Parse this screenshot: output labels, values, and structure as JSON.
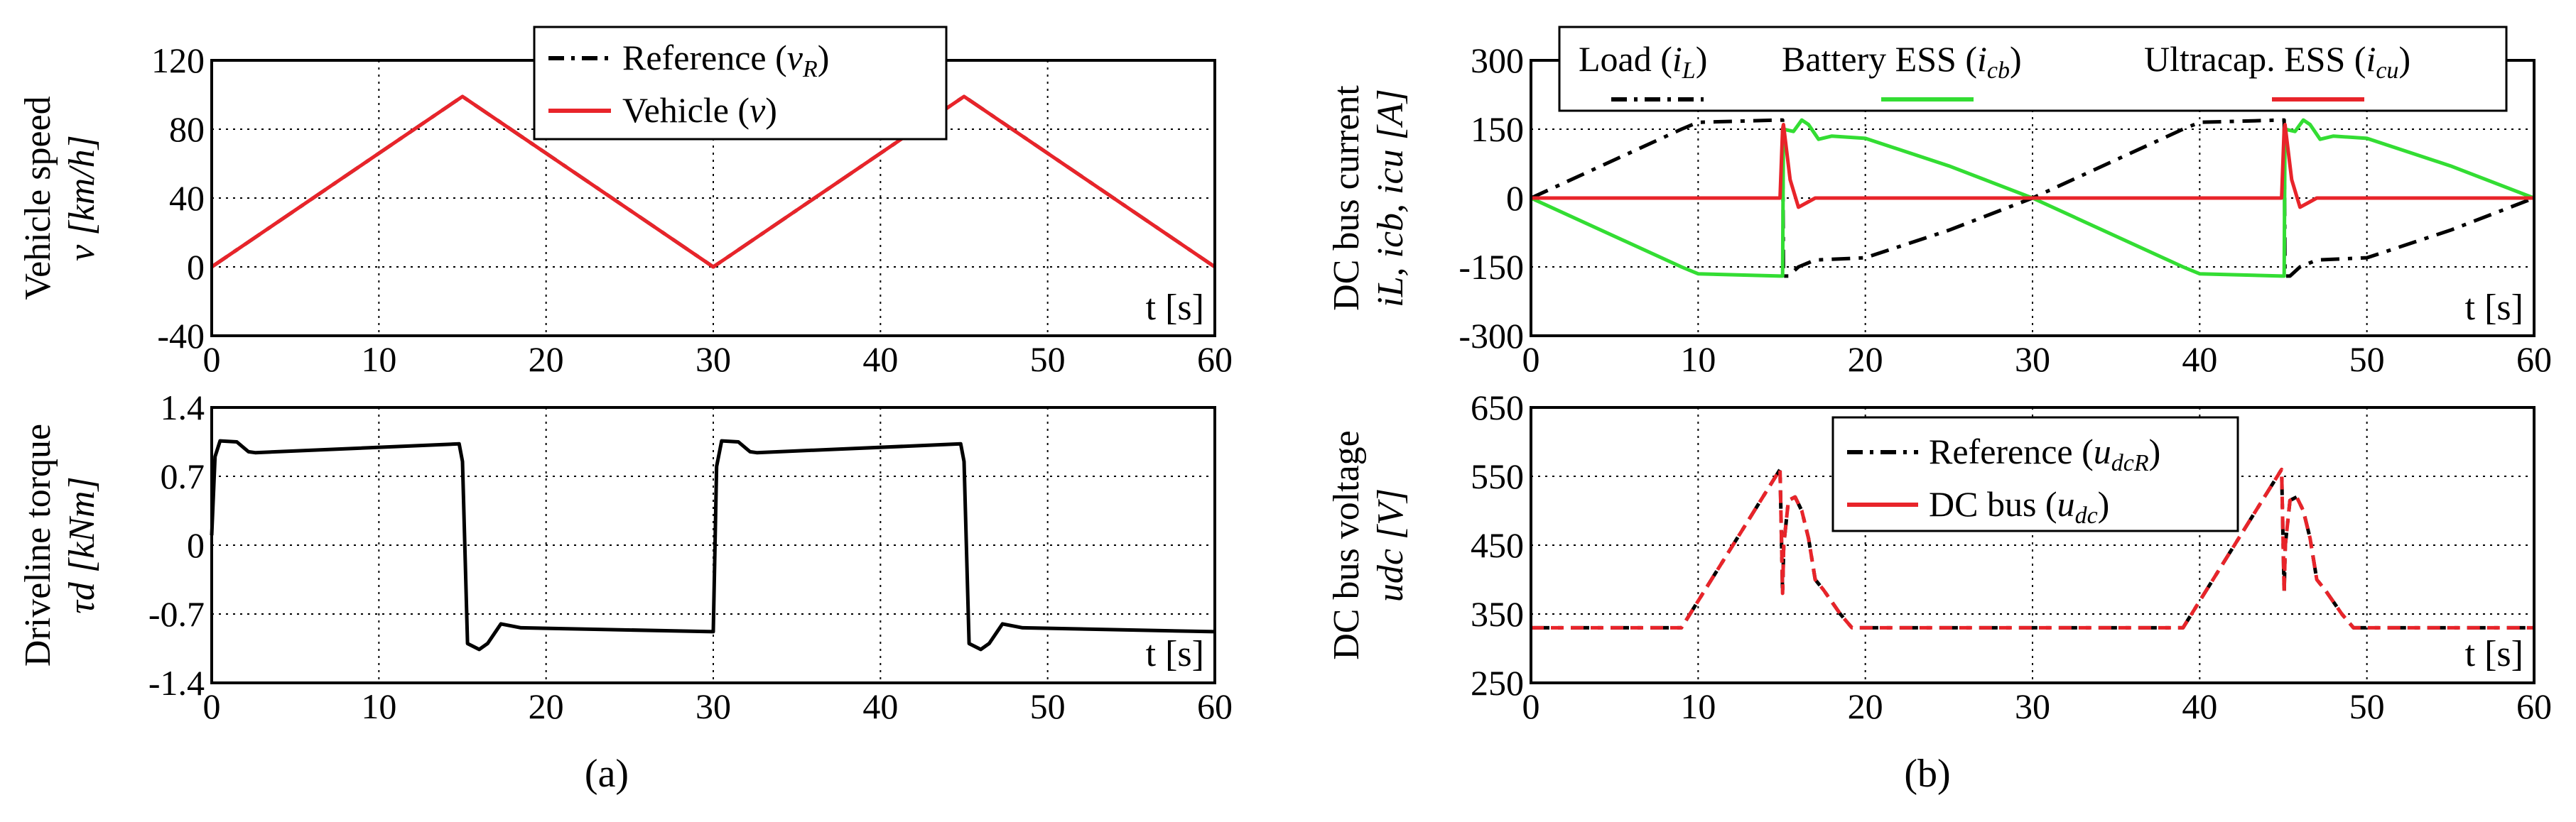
{
  "figure": {
    "panel_a_label": "(a)",
    "panel_b_label": "(b)"
  },
  "chart_data": [
    {
      "id": "speed",
      "type": "line",
      "panel": "a",
      "ylabel_lines": [
        "Vehicle speed",
        "v [km/h]"
      ],
      "xlabel": "t [s]",
      "xlim": [
        0,
        60
      ],
      "ylim": [
        -40,
        120
      ],
      "xticks": [
        0,
        10,
        20,
        30,
        40,
        50,
        60
      ],
      "yticks": [
        -40,
        0,
        40,
        80,
        120
      ],
      "ytick_labels": [
        "-40",
        "0",
        "40",
        "80",
        "120"
      ],
      "grid": true,
      "legend_position": "top-center",
      "series": [
        {
          "name": "Reference (vR)",
          "color": "#000000",
          "dash": "dashdot",
          "x": [
            0,
            15,
            30,
            45,
            60
          ],
          "y": [
            0,
            99,
            0,
            99,
            0
          ]
        },
        {
          "name": "Vehicle (v)",
          "color": "#e8242a",
          "dash": "solid",
          "x": [
            0,
            15,
            30,
            45,
            60
          ],
          "y": [
            0,
            99,
            0,
            99,
            0
          ]
        }
      ],
      "legend": [
        {
          "label": "Reference (",
          "sym": "v",
          "sub": "R",
          "close": ")"
        },
        {
          "label": "Vehicle (",
          "sym": "v",
          "sub": "",
          "close": ")"
        }
      ]
    },
    {
      "id": "torque",
      "type": "line",
      "panel": "a",
      "ylabel_lines": [
        "Driveline torque",
        "τd [kNm]"
      ],
      "xlabel": "t [s]",
      "xlim": [
        0,
        60
      ],
      "ylim": [
        -1.4,
        1.4
      ],
      "xticks": [
        0,
        10,
        20,
        30,
        40,
        50,
        60
      ],
      "yticks": [
        -1.4,
        -0.7,
        0,
        0.7,
        1.4
      ],
      "ytick_labels": [
        "-1.4",
        "-0.7",
        "0",
        "0.7",
        "1.4"
      ],
      "grid": true,
      "series": [
        {
          "name": "Driveline torque (τd)",
          "color": "#000000",
          "dash": "solid",
          "x": [
            0,
            0.2,
            0.5,
            1.5,
            2.2,
            2.6,
            14.8,
            15.0,
            15.3,
            16.0,
            16.5,
            17.3,
            18.5,
            30.0,
            30.2,
            30.5,
            31.5,
            32.2,
            32.6,
            44.8,
            45.0,
            45.3,
            46.0,
            46.5,
            47.3,
            48.5,
            60
          ],
          "y": [
            0.1,
            0.9,
            1.06,
            1.05,
            0.95,
            0.94,
            1.03,
            0.85,
            -1.0,
            -1.06,
            -1.0,
            -0.8,
            -0.84,
            -0.88,
            0.8,
            1.06,
            1.05,
            0.95,
            0.94,
            1.03,
            0.85,
            -1.0,
            -1.06,
            -1.0,
            -0.8,
            -0.84,
            -0.88
          ]
        }
      ]
    },
    {
      "id": "current",
      "type": "line",
      "panel": "b",
      "ylabel_lines": [
        "DC bus current",
        "iL, icb, icu [A]"
      ],
      "xlabel": "t [s]",
      "xlim": [
        0,
        60
      ],
      "ylim": [
        -300,
        300
      ],
      "xticks": [
        0,
        10,
        20,
        30,
        40,
        50,
        60
      ],
      "yticks": [
        -300,
        -150,
        0,
        150,
        300
      ],
      "ytick_labels": [
        "-300",
        "-150",
        "0",
        "150",
        "300"
      ],
      "grid": true,
      "legend_position": "top",
      "series": [
        {
          "name": "Load (iL)",
          "color": "#000000",
          "dash": "dashdot",
          "x": [
            0,
            9,
            10,
            14.9,
            15.05,
            15.1,
            15.4,
            16,
            17,
            20,
            25,
            30,
            39,
            40,
            44.9,
            45.05,
            45.1,
            45.4,
            46,
            47,
            50,
            55,
            60
          ],
          "y": [
            0,
            150,
            165,
            170,
            170,
            -170,
            -170,
            -150,
            -135,
            -130,
            -70,
            0,
            150,
            165,
            170,
            170,
            -170,
            -170,
            -150,
            -135,
            -130,
            -70,
            0
          ]
        },
        {
          "name": "Battery ESS (icb)",
          "color": "#33dd33",
          "dash": "solid",
          "x": [
            0,
            9,
            10,
            14.9,
            15.05,
            15.1,
            15.7,
            16.2,
            16.6,
            17.2,
            18,
            20,
            25,
            30,
            39,
            40,
            44.9,
            45.05,
            45.1,
            45.7,
            46.2,
            46.6,
            47.2,
            48,
            50,
            55,
            60
          ],
          "y": [
            0,
            -150,
            -165,
            -170,
            -170,
            150,
            145,
            170,
            160,
            128,
            135,
            130,
            70,
            0,
            -150,
            -165,
            -170,
            -170,
            150,
            145,
            170,
            160,
            128,
            135,
            130,
            70,
            0
          ]
        },
        {
          "name": "Ultracap. ESS (icu)",
          "color": "#e8242a",
          "dash": "solid",
          "x": [
            0,
            14.9,
            15.05,
            15.1,
            15.5,
            16.0,
            16.5,
            17.0,
            30,
            44.9,
            45.05,
            45.1,
            45.5,
            46.0,
            46.5,
            47.0,
            60
          ],
          "y": [
            0,
            0,
            150,
            160,
            40,
            -20,
            -10,
            0,
            0,
            0,
            150,
            160,
            40,
            -20,
            -10,
            0,
            0
          ]
        }
      ],
      "legend": [
        {
          "label": "Load (",
          "sym": "i",
          "sub": "L",
          "close": ")"
        },
        {
          "label": "Battery ESS (",
          "sym": "i",
          "sub": "cb",
          "close": ")"
        },
        {
          "label": "Ultracap. ESS (",
          "sym": "i",
          "sub": "cu",
          "close": ")"
        }
      ]
    },
    {
      "id": "voltage",
      "type": "line",
      "panel": "b",
      "ylabel_lines": [
        "DC bus voltage",
        "udc [V]"
      ],
      "xlabel": "t [s]",
      "xlim": [
        0,
        60
      ],
      "ylim": [
        250,
        650
      ],
      "xticks": [
        0,
        10,
        20,
        30,
        40,
        50,
        60
      ],
      "yticks": [
        250,
        350,
        450,
        550,
        650
      ],
      "ytick_labels": [
        "250",
        "350",
        "450",
        "550",
        "650"
      ],
      "grid": true,
      "legend_position": "top-center",
      "series": [
        {
          "name": "Reference (udcR)",
          "color": "#000000",
          "dash": "dashdot",
          "x": [
            0,
            9,
            14.9,
            15.05,
            15.12,
            15.4,
            15.8,
            16.2,
            16.6,
            17.0,
            17.5,
            18.5,
            19.2,
            39,
            44.9,
            45.05,
            45.12,
            45.4,
            45.8,
            46.2,
            46.6,
            47.0,
            47.5,
            48.5,
            49.2,
            60
          ],
          "y": [
            330,
            330,
            560,
            380,
            450,
            515,
            520,
            500,
            460,
            400,
            385,
            350,
            330,
            330,
            560,
            380,
            450,
            515,
            520,
            500,
            460,
            400,
            385,
            350,
            330,
            330
          ]
        },
        {
          "name": "DC bus (udc)",
          "color": "#e8242a",
          "dash": "dashed",
          "x": [
            0,
            9,
            14.9,
            15.05,
            15.12,
            15.4,
            15.8,
            16.2,
            16.6,
            17.0,
            17.5,
            18.5,
            19.2,
            39,
            44.9,
            45.05,
            45.12,
            45.4,
            45.8,
            46.2,
            46.6,
            47.0,
            47.5,
            48.5,
            49.2,
            60
          ],
          "y": [
            330,
            330,
            560,
            380,
            450,
            515,
            520,
            500,
            460,
            400,
            385,
            350,
            330,
            330,
            560,
            380,
            450,
            515,
            520,
            500,
            460,
            400,
            385,
            350,
            330,
            330
          ]
        }
      ],
      "legend": [
        {
          "label": "Reference (",
          "sym": "u",
          "sub": "dcR",
          "close": ")"
        },
        {
          "label": "DC bus (",
          "sym": "u",
          "sub": "dc",
          "close": ")"
        }
      ]
    }
  ]
}
